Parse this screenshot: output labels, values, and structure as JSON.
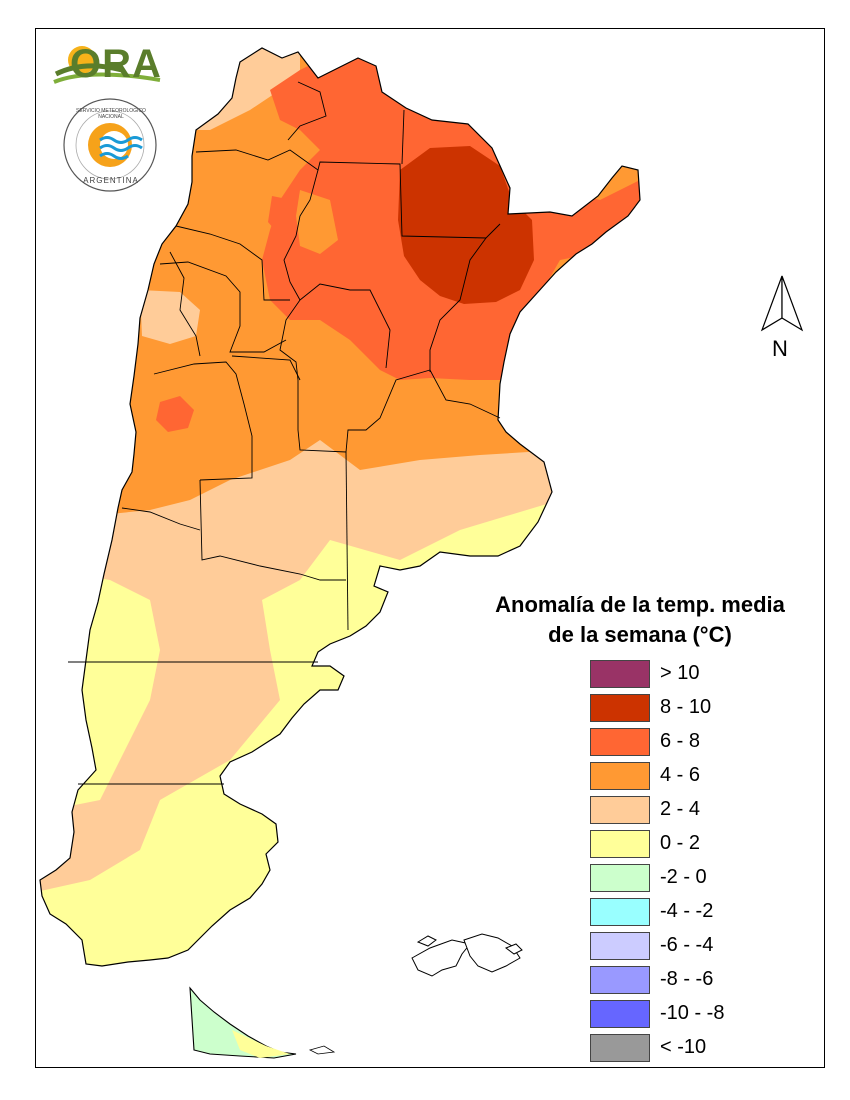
{
  "legend": {
    "title_line1": "Anomalía de la temp. media",
    "title_line2": "de la semana (°C)",
    "items": [
      {
        "label": "> 10",
        "color": "#993366"
      },
      {
        "label": "8 - 10",
        "color": "#cc3300"
      },
      {
        "label": "6 - 8",
        "color": "#ff6633"
      },
      {
        "label": "4 - 6",
        "color": "#ff9933"
      },
      {
        "label": "2 - 4",
        "color": "#ffcc99"
      },
      {
        "label": "0 - 2",
        "color": "#ffff99"
      },
      {
        "label": "-2 - 0",
        "color": "#ccffcc"
      },
      {
        "label": "-4 - -2",
        "color": "#99ffff"
      },
      {
        "label": "-6 - -4",
        "color": "#ccccff"
      },
      {
        "label": "-8 - -6",
        "color": "#9999ff"
      },
      {
        "label": "-10 - -8",
        "color": "#6666ff"
      },
      {
        "label": "< -10",
        "color": "#999999"
      }
    ]
  },
  "north_arrow": {
    "label": "N",
    "icon": "north-arrow-icon"
  },
  "logos": {
    "ora": {
      "text": "ORA",
      "icon": "ora-logo-icon"
    },
    "smn": {
      "text_top": "SERVICIO METEOROLOGICO NACIONAL",
      "text_bottom": "ARGENTINA",
      "icon": "smn-logo-icon"
    }
  }
}
